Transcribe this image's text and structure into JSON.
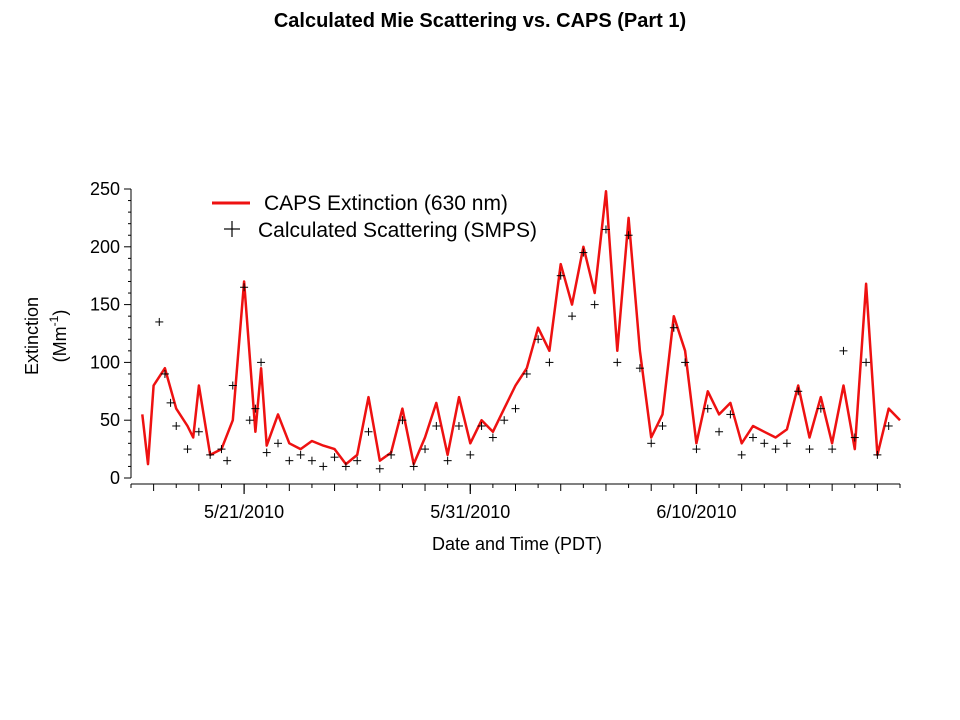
{
  "slide": {
    "title": "Calculated Mie Scattering vs. CAPS (Part 1)"
  },
  "chart_data": {
    "type": "line",
    "title": "",
    "xlabel": "Date and Time (PDT)",
    "ylabel": "Extinction",
    "ylabel_unit": "(Mm",
    "ylabel_unit_exp": "-1",
    "ylabel_unit_close": ")",
    "xlim": [
      "2010-05-16",
      "2010-06-19"
    ],
    "ylim": [
      0,
      250
    ],
    "yticks": [
      0,
      50,
      100,
      150,
      200,
      250
    ],
    "xticks": [
      {
        "date": "2010-05-21",
        "label": "5/21/2010"
      },
      {
        "date": "2010-05-31",
        "label": "5/31/2010"
      },
      {
        "date": "2010-06-10",
        "label": "6/10/2010"
      }
    ],
    "grid": false,
    "legend_position": "top",
    "series": [
      {
        "name": "CAPS Extinction (630 nm)",
        "style": "line",
        "color": "#ee1111",
        "x": [
          "2010-05-16T12:00",
          "2010-05-16T18:00",
          "2010-05-17T00:00",
          "2010-05-17T12:00",
          "2010-05-18T00:00",
          "2010-05-18T12:00",
          "2010-05-18T18:00",
          "2010-05-19T00:00",
          "2010-05-19T12:00",
          "2010-05-20T00:00",
          "2010-05-20T12:00",
          "2010-05-21T00:00",
          "2010-05-21T12:00",
          "2010-05-21T18:00",
          "2010-05-22T00:00",
          "2010-05-22T12:00",
          "2010-05-23T00:00",
          "2010-05-23T12:00",
          "2010-05-24T00:00",
          "2010-05-24T12:00",
          "2010-05-25T00:00",
          "2010-05-25T12:00",
          "2010-05-26T00:00",
          "2010-05-26T12:00",
          "2010-05-27T00:00",
          "2010-05-27T12:00",
          "2010-05-28T00:00",
          "2010-05-28T12:00",
          "2010-05-29T00:00",
          "2010-05-29T12:00",
          "2010-05-30T00:00",
          "2010-05-30T12:00",
          "2010-05-31T00:00",
          "2010-05-31T12:00",
          "2010-06-01T00:00",
          "2010-06-01T12:00",
          "2010-06-02T00:00",
          "2010-06-02T12:00",
          "2010-06-03T00:00",
          "2010-06-03T12:00",
          "2010-06-04T00:00",
          "2010-06-04T12:00",
          "2010-06-05T00:00",
          "2010-06-05T12:00",
          "2010-06-06T00:00",
          "2010-06-06T12:00",
          "2010-06-07T00:00",
          "2010-06-07T12:00",
          "2010-06-08T00:00",
          "2010-06-08T12:00",
          "2010-06-09T00:00",
          "2010-06-09T12:00",
          "2010-06-10T00:00",
          "2010-06-10T12:00",
          "2010-06-11T00:00",
          "2010-06-11T12:00",
          "2010-06-12T00:00",
          "2010-06-12T12:00",
          "2010-06-13T00:00",
          "2010-06-13T12:00",
          "2010-06-14T00:00",
          "2010-06-14T12:00",
          "2010-06-15T00:00",
          "2010-06-15T12:00",
          "2010-06-16T00:00",
          "2010-06-16T12:00",
          "2010-06-17T00:00",
          "2010-06-17T12:00",
          "2010-06-18T00:00",
          "2010-06-18T12:00",
          "2010-06-19T00:00"
        ],
        "y": [
          55,
          12,
          80,
          95,
          60,
          45,
          35,
          80,
          20,
          25,
          50,
          170,
          40,
          95,
          28,
          55,
          30,
          25,
          32,
          28,
          25,
          12,
          20,
          70,
          15,
          22,
          60,
          12,
          35,
          65,
          20,
          70,
          30,
          50,
          40,
          60,
          80,
          95,
          130,
          110,
          185,
          150,
          200,
          160,
          248,
          110,
          225,
          110,
          35,
          55,
          140,
          110,
          30,
          75,
          55,
          65,
          30,
          45,
          40,
          35,
          42,
          80,
          35,
          70,
          30,
          80,
          25,
          168,
          20,
          60,
          50
        ]
      },
      {
        "name": "Calculated Scattering (SMPS)",
        "style": "marker",
        "marker": "+",
        "color": "#000000",
        "x": [
          "2010-05-17T06:00",
          "2010-05-17T12:00",
          "2010-05-17T18:00",
          "2010-05-18T00:00",
          "2010-05-18T12:00",
          "2010-05-19T00:00",
          "2010-05-19T12:00",
          "2010-05-20T00:00",
          "2010-05-20T06:00",
          "2010-05-20T12:00",
          "2010-05-21T00:00",
          "2010-05-21T06:00",
          "2010-05-21T12:00",
          "2010-05-21T18:00",
          "2010-05-22T00:00",
          "2010-05-22T12:00",
          "2010-05-23T00:00",
          "2010-05-23T12:00",
          "2010-05-24T00:00",
          "2010-05-24T12:00",
          "2010-05-25T00:00",
          "2010-05-25T12:00",
          "2010-05-26T00:00",
          "2010-05-26T12:00",
          "2010-05-27T00:00",
          "2010-05-27T12:00",
          "2010-05-28T00:00",
          "2010-05-28T12:00",
          "2010-05-29T00:00",
          "2010-05-29T12:00",
          "2010-05-30T00:00",
          "2010-05-30T12:00",
          "2010-05-31T00:00",
          "2010-05-31T12:00",
          "2010-06-01T00:00",
          "2010-06-01T12:00",
          "2010-06-02T00:00",
          "2010-06-02T12:00",
          "2010-06-03T00:00",
          "2010-06-03T12:00",
          "2010-06-04T00:00",
          "2010-06-04T12:00",
          "2010-06-05T00:00",
          "2010-06-05T12:00",
          "2010-06-06T00:00",
          "2010-06-06T12:00",
          "2010-06-07T00:00",
          "2010-06-07T12:00",
          "2010-06-08T00:00",
          "2010-06-08T12:00",
          "2010-06-09T00:00",
          "2010-06-09T12:00",
          "2010-06-10T00:00",
          "2010-06-10T12:00",
          "2010-06-11T00:00",
          "2010-06-11T12:00",
          "2010-06-12T00:00",
          "2010-06-12T12:00",
          "2010-06-13T00:00",
          "2010-06-13T12:00",
          "2010-06-14T00:00",
          "2010-06-14T12:00",
          "2010-06-15T00:00",
          "2010-06-15T12:00",
          "2010-06-16T00:00",
          "2010-06-16T12:00",
          "2010-06-17T00:00",
          "2010-06-17T12:00",
          "2010-06-18T00:00",
          "2010-06-18T12:00"
        ],
        "y": [
          135,
          90,
          65,
          45,
          25,
          40,
          20,
          25,
          15,
          80,
          165,
          50,
          60,
          100,
          22,
          30,
          15,
          20,
          15,
          10,
          18,
          10,
          15,
          40,
          8,
          20,
          50,
          10,
          25,
          45,
          15,
          45,
          20,
          45,
          35,
          50,
          60,
          90,
          120,
          100,
          175,
          140,
          195,
          150,
          215,
          100,
          210,
          95,
          30,
          45,
          130,
          100,
          25,
          60,
          40,
          55,
          20,
          35,
          30,
          25,
          30,
          75,
          25,
          60,
          25,
          110,
          35,
          100,
          20,
          45
        ]
      }
    ]
  }
}
